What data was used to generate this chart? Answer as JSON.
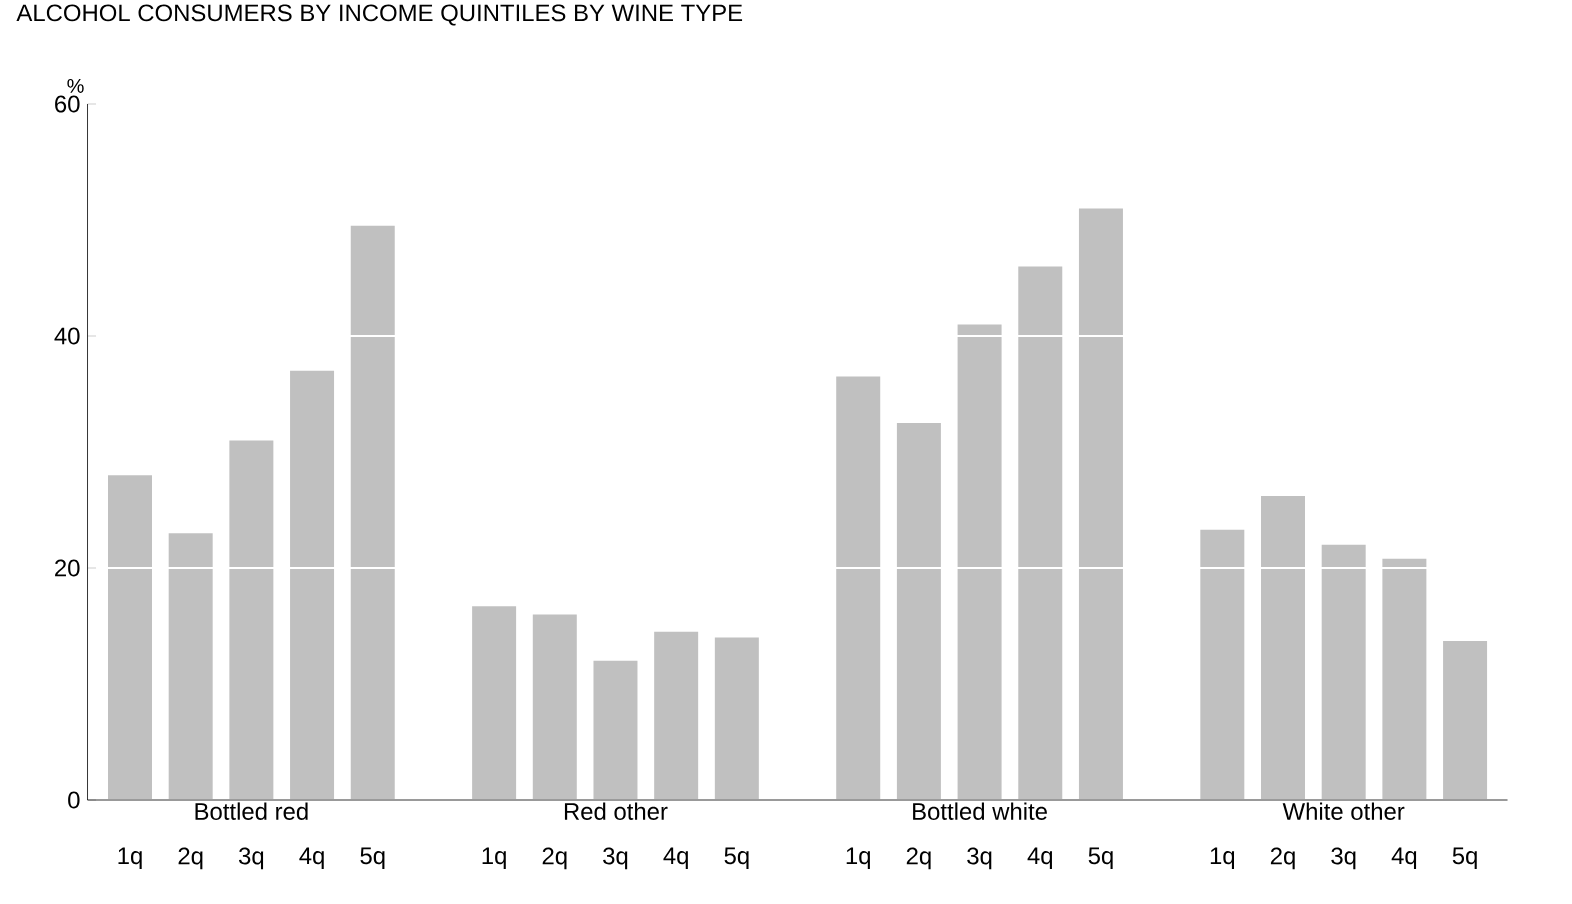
{
  "chart_data": {
    "type": "bar",
    "title": "ALCOHOL CONSUMERS BY INCOME QUINTILES BY WINE TYPE",
    "ylabel": "%",
    "categories": [
      "1q",
      "2q",
      "3q",
      "4q",
      "5q",
      "1q",
      "2q",
      "3q",
      "4q",
      "5q",
      "1q",
      "2q",
      "3q",
      "4q",
      "5q",
      "1q",
      "2q",
      "3q",
      "4q",
      "5q"
    ],
    "values": [
      28,
      23,
      31,
      37,
      49.5,
      16.7,
      16,
      12,
      14.5,
      14,
      36.5,
      32.5,
      41,
      46,
      51,
      23.3,
      26.2,
      22,
      20.8,
      13.7
    ],
    "color": "#c0c0c0",
    "annotations": [
      "Bottled red",
      "Red other",
      "Bottled white",
      "White other"
    ],
    "ylim": [
      0,
      60
    ],
    "yticks": [
      0,
      20,
      40,
      60
    ],
    "grid": "y"
  }
}
